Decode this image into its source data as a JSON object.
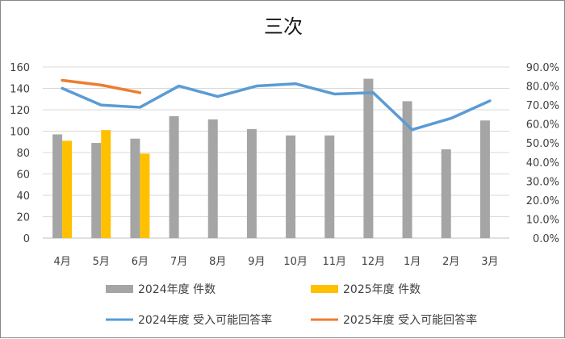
{
  "chart_data": {
    "type": "bar",
    "title": "三次",
    "categories": [
      "4月",
      "5月",
      "6月",
      "7月",
      "8月",
      "9月",
      "10月",
      "11月",
      "12月",
      "1月",
      "2月",
      "3月"
    ],
    "ylim": [
      0,
      160
    ],
    "yticks": [
      "0",
      "20",
      "40",
      "60",
      "80",
      "100",
      "120",
      "140",
      "160"
    ],
    "y2lim": [
      0,
      0.9
    ],
    "y2ticks": [
      "0.0%",
      "10.0%",
      "20.0%",
      "30.0%",
      "40.0%",
      "50.0%",
      "60.0%",
      "70.0%",
      "80.0%",
      "90.0%"
    ],
    "grid": true,
    "legend_position": "bottom",
    "series": [
      {
        "name": "2024年度  件数",
        "type": "bar",
        "axis": "left",
        "color": "#a5a5a5",
        "values": [
          97,
          89,
          93,
          114,
          111,
          102,
          96,
          96,
          149,
          128,
          83,
          110
        ]
      },
      {
        "name": "2025年度  件数",
        "type": "bar",
        "axis": "left",
        "color": "#ffc000",
        "values": [
          91,
          101,
          79,
          null,
          null,
          null,
          null,
          null,
          null,
          null,
          null,
          null
        ]
      },
      {
        "name": "2024年度  受入可能回答率",
        "type": "line",
        "axis": "right",
        "color": "#5b9bd5",
        "values": [
          0.788,
          0.7,
          0.688,
          0.8,
          0.745,
          0.8,
          0.812,
          0.758,
          0.765,
          0.57,
          0.63,
          0.722
        ]
      },
      {
        "name": "2025年度  受入可能回答率",
        "type": "line",
        "axis": "right",
        "color": "#ed7d31",
        "values": [
          0.83,
          0.805,
          0.765,
          null,
          null,
          null,
          null,
          null,
          null,
          null,
          null,
          null
        ]
      }
    ]
  }
}
